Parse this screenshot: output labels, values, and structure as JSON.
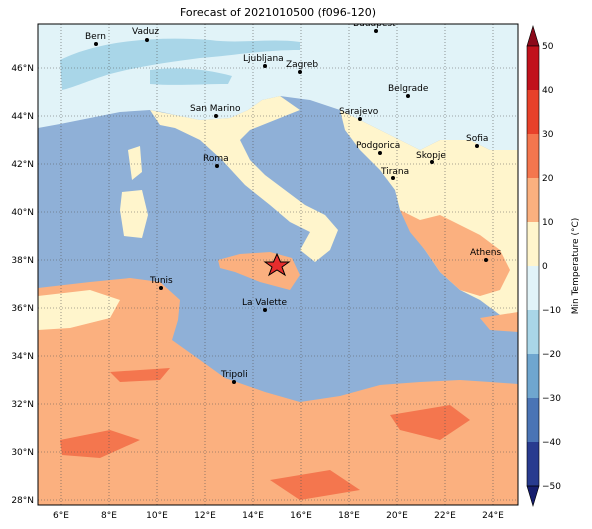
{
  "title": "Forecast of 2021010500 (f096-120)",
  "colorbar": {
    "label": "Min Temperature (°C)",
    "ticks": [
      "50",
      "40",
      "30",
      "20",
      "10",
      "0",
      "−10",
      "−20",
      "−30",
      "−40",
      "−50"
    ],
    "colors": [
      "#8b0a1a",
      "#c1121c",
      "#e8412a",
      "#f4764e",
      "#fbb07f",
      "#fff5cc",
      "#e1f3f8",
      "#a9d6e8",
      "#6fa6cf",
      "#4a74b5",
      "#283b8f",
      "#161e6e"
    ]
  },
  "axes": {
    "x_ticks": [
      "6°E",
      "8°E",
      "10°E",
      "12°E",
      "14°E",
      "16°E",
      "18°E",
      "20°E",
      "22°E",
      "24°E"
    ],
    "y_ticks": [
      "46°N",
      "44°N",
      "42°N",
      "40°N",
      "38°N",
      "36°N",
      "34°N",
      "32°N",
      "30°N",
      "28°N"
    ]
  },
  "cities": [
    "Bern",
    "Vaduz",
    "Budapest",
    "Ljubljana",
    "Zagreb",
    "Belgrade",
    "San Marino",
    "Sarajevo",
    "Sofia",
    "Podgorica",
    "Skopje",
    "Roma",
    "Tirana",
    "Athens",
    "Tunis",
    "La Valette",
    "Tripoli"
  ],
  "marker": "star"
}
